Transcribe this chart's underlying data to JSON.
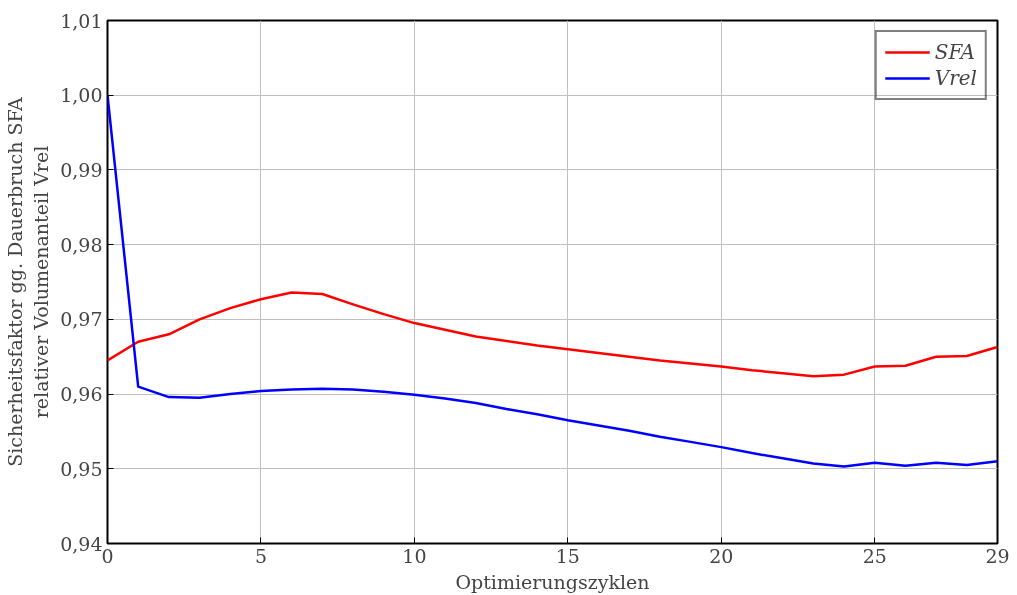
{
  "chart_data": {
    "type": "line",
    "xlabel": "Optimierungszyklen",
    "ylabel": "Sicherheitsfaktor gg. Dauerbruch SFA\nrelativer Volumenanteil Vrel",
    "x": [
      0,
      1,
      2,
      3,
      4,
      5,
      6,
      7,
      8,
      9,
      10,
      11,
      12,
      13,
      14,
      15,
      16,
      17,
      18,
      19,
      20,
      21,
      22,
      23,
      24,
      25,
      26,
      27,
      28,
      29
    ],
    "series": [
      {
        "name": "SFA",
        "color": "#ff0000",
        "values": [
          0.9645,
          0.967,
          0.968,
          0.97,
          0.9715,
          0.9727,
          0.9736,
          0.9734,
          0.972,
          0.9707,
          0.9695,
          0.9686,
          0.9677,
          0.9671,
          0.9665,
          0.966,
          0.9655,
          0.965,
          0.9645,
          0.9641,
          0.9637,
          0.9632,
          0.9628,
          0.9624,
          0.9626,
          0.9637,
          0.9638,
          0.965,
          0.9651,
          0.9663
        ]
      },
      {
        "name": "Vrel",
        "color": "#0000ff",
        "values": [
          1.0,
          0.961,
          0.9596,
          0.9595,
          0.96,
          0.9604,
          0.9606,
          0.9607,
          0.9606,
          0.9603,
          0.9599,
          0.9594,
          0.9588,
          0.958,
          0.9573,
          0.9565,
          0.9558,
          0.9551,
          0.9543,
          0.9536,
          0.9529,
          0.9521,
          0.9514,
          0.9507,
          0.9503,
          0.9508,
          0.9504,
          0.9508,
          0.9505,
          0.951
        ]
      }
    ],
    "xlim": [
      0,
      29
    ],
    "xticks": [
      0,
      5,
      10,
      15,
      20,
      25,
      29
    ],
    "ylim": [
      0.94,
      1.01
    ],
    "yticks": [
      {
        "value": 0.94,
        "label": "0,94"
      },
      {
        "value": 0.95,
        "label": "0,95"
      },
      {
        "value": 0.96,
        "label": "0,96"
      },
      {
        "value": 0.97,
        "label": "0,97"
      },
      {
        "value": 0.98,
        "label": "0,98"
      },
      {
        "value": 0.99,
        "label": "0,99"
      },
      {
        "value": 1.0,
        "label": "1,00"
      },
      {
        "value": 1.01,
        "label": "1,01"
      }
    ],
    "grid": true,
    "legend": "top right",
    "marker": "none",
    "line_style": "solid"
  }
}
